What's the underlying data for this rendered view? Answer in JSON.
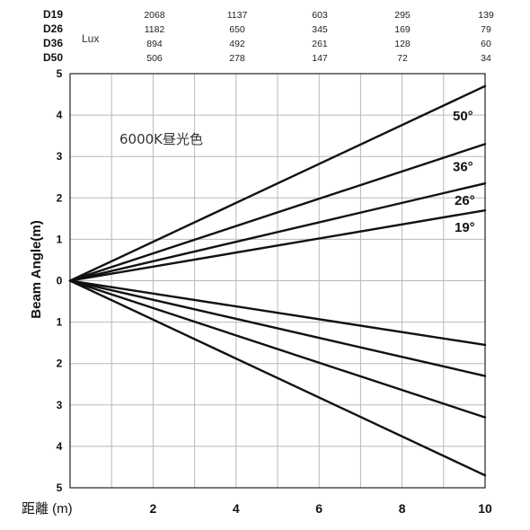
{
  "chart_data": {
    "type": "line",
    "annotation": "6000K昼光色",
    "xlabel": "距離 (m)",
    "ylabel": "Beam Angle(m)",
    "xlim": [
      0,
      10
    ],
    "ylim": [
      -5,
      5
    ],
    "x_ticks": [
      "2",
      "4",
      "6",
      "8",
      "10"
    ],
    "y_ticks": [
      "5",
      "4",
      "3",
      "2",
      "1",
      "0",
      "1",
      "2",
      "3",
      "4",
      "5"
    ],
    "grid": true,
    "lux_table": {
      "unit": "Lux",
      "rows": [
        {
          "label": "D19",
          "values": [
            "2068",
            "1137",
            "603",
            "295",
            "139"
          ]
        },
        {
          "label": "D26",
          "values": [
            "1182",
            "650",
            "345",
            "169",
            "79"
          ]
        },
        {
          "label": "D36",
          "values": [
            "894",
            "492",
            "261",
            "128",
            "60"
          ]
        },
        {
          "label": "D50",
          "values": [
            "506",
            "278",
            "147",
            "72",
            "34"
          ]
        }
      ]
    },
    "series": [
      {
        "name": "50°",
        "x": [
          0,
          10
        ],
        "upper": [
          0,
          4.7
        ],
        "lower": [
          0,
          -4.7
        ]
      },
      {
        "name": "36°",
        "x": [
          0,
          10
        ],
        "upper": [
          0,
          3.3
        ],
        "lower": [
          0,
          -3.3
        ]
      },
      {
        "name": "26°",
        "x": [
          0,
          10
        ],
        "upper": [
          0,
          2.35
        ],
        "lower": [
          0,
          -2.3
        ]
      },
      {
        "name": "19°",
        "x": [
          0,
          10
        ],
        "upper": [
          0,
          1.7
        ],
        "lower": [
          0,
          -1.55
        ]
      }
    ]
  }
}
